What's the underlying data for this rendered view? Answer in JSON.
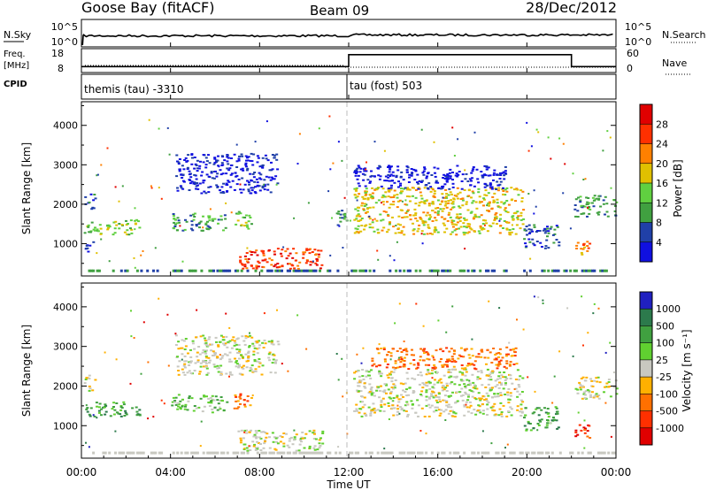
{
  "header": {
    "station": "Goose Bay (fitACF)",
    "beam": "Beam 09",
    "date": "28/Dec/2012"
  },
  "noise_panel": {
    "left_label": "N.Sky",
    "left_ticks": [
      "10^5",
      "10^0"
    ],
    "right_label": "N.Search",
    "right_ticks": [
      "10^5",
      "10^0"
    ]
  },
  "freq_panel": {
    "left_label_1": "Freq.",
    "left_label_2": "[MHz]",
    "left_ticks": [
      "18",
      "8"
    ],
    "right_label": "Nave",
    "right_ticks": [
      "60",
      "0"
    ]
  },
  "cpid_panel": {
    "label": "CPID",
    "modes": [
      {
        "name": "themis (tau)",
        "id": "-3310"
      },
      {
        "name": "tau (fost)",
        "id": "503"
      }
    ]
  },
  "power_panel": {
    "ylabel": "Slant Range [km]",
    "yticks": [
      "1000",
      "2000",
      "3000",
      "4000"
    ],
    "colorbar_label": "Power [dB]",
    "colorbar_ticks": [
      "4",
      "8",
      "12",
      "16",
      "20",
      "24",
      "28"
    ],
    "colors": [
      "#1010e0",
      "#2040a8",
      "#40a040",
      "#60d040",
      "#e0c000",
      "#ff8000",
      "#ff3000",
      "#e00000"
    ]
  },
  "velocity_panel": {
    "ylabel": "Slant Range [km]",
    "yticks": [
      "1000",
      "2000",
      "3000",
      "4000"
    ],
    "colorbar_label": "Velocity [m s⁻¹]",
    "colorbar_ticks": [
      "1000",
      "500",
      "100",
      "25",
      "-25",
      "-100",
      "-500",
      "-1000"
    ],
    "colors": [
      "#2020c0",
      "#2c7a4c",
      "#40a040",
      "#60d030",
      "#c8c8c0",
      "#ffb000",
      "#ff7000",
      "#ff3000",
      "#e00000"
    ]
  },
  "xaxis": {
    "label": "Time UT",
    "ticks": [
      "00:00",
      "04:00",
      "08:00",
      "12:00",
      "16:00",
      "20:00",
      "00:00"
    ]
  },
  "chart_data": {
    "type": "heatmap",
    "title": "Goose Bay (fitACF)  Beam 09  28/Dec/2012",
    "x_label": "Time UT",
    "x_range_hours": [
      0,
      24
    ],
    "y_label": "Slant Range [km]",
    "y_range_km": [
      180,
      4600
    ],
    "noise": {
      "n_sky_range": [
        "10^0",
        "10^5"
      ],
      "n_search_range": [
        "10^0",
        "10^5"
      ]
    },
    "frequency_mhz": [
      {
        "start_h": 0.0,
        "end_h": 12.0,
        "value": 10.5
      },
      {
        "start_h": 12.0,
        "end_h": 22.0,
        "value": 15.5
      },
      {
        "start_h": 22.0,
        "end_h": 24.0,
        "value": 10.5
      }
    ],
    "cpid": [
      {
        "start_h": 0.0,
        "end_h": 12.0,
        "mode": "themis (tau)",
        "id": -3310
      },
      {
        "start_h": 12.0,
        "end_h": 24.0,
        "mode": "tau (fost)",
        "id": 503
      }
    ],
    "power_colorbar_db": [
      4,
      8,
      12,
      16,
      20,
      24,
      28
    ],
    "velocity_colorbar_ms": [
      1000,
      500,
      100,
      25,
      -25,
      -100,
      -500,
      -1000
    ],
    "power_patches": [
      {
        "t0": 0.1,
        "t1": 2.6,
        "r0": 1250,
        "r1": 1620,
        "level": 3
      },
      {
        "t0": 0.1,
        "t1": 0.6,
        "r0": 1900,
        "r1": 2300,
        "level": 1
      },
      {
        "t0": 0.1,
        "t1": 0.5,
        "r0": 750,
        "r1": 1100,
        "level": 1
      },
      {
        "t0": 4.0,
        "t1": 6.5,
        "r0": 1350,
        "r1": 1800,
        "level": 2
      },
      {
        "t0": 6.8,
        "t1": 7.6,
        "r0": 1400,
        "r1": 1850,
        "level": 3
      },
      {
        "t0": 4.2,
        "t1": 8.8,
        "r0": 2300,
        "r1": 3300,
        "level": 0
      },
      {
        "t0": 7.0,
        "t1": 10.8,
        "r0": 380,
        "r1": 900,
        "level": 6
      },
      {
        "t0": 11.4,
        "t1": 12.0,
        "r0": 1450,
        "r1": 1900,
        "level": 2
      },
      {
        "t0": 12.2,
        "t1": 19.8,
        "r0": 1250,
        "r1": 2450,
        "level": 4
      },
      {
        "t0": 12.2,
        "t1": 19.0,
        "r0": 2400,
        "r1": 3000,
        "level": 0
      },
      {
        "t0": 19.8,
        "t1": 21.4,
        "r0": 900,
        "r1": 1500,
        "level": 1
      },
      {
        "t0": 22.1,
        "t1": 24.0,
        "r0": 1700,
        "r1": 2250,
        "level": 2
      },
      {
        "t0": 22.1,
        "t1": 22.8,
        "r0": 700,
        "r1": 1100,
        "level": 5
      }
    ],
    "velocity_patches": [
      {
        "t0": 0.1,
        "t1": 2.6,
        "r0": 1250,
        "r1": 1620,
        "level": 2
      },
      {
        "t0": 0.1,
        "t1": 0.6,
        "r0": 1900,
        "r1": 2300,
        "level": 4
      },
      {
        "t0": 4.0,
        "t1": 6.5,
        "r0": 1350,
        "r1": 1800,
        "level": 3
      },
      {
        "t0": 6.8,
        "t1": 7.6,
        "r0": 1400,
        "r1": 1850,
        "level": 6
      },
      {
        "t0": 4.2,
        "t1": 8.8,
        "r0": 2300,
        "r1": 3300,
        "level": 4
      },
      {
        "t0": 7.0,
        "t1": 10.8,
        "r0": 380,
        "r1": 900,
        "level": 4
      },
      {
        "t0": 12.2,
        "t1": 19.8,
        "r0": 1250,
        "r1": 2450,
        "level": 4
      },
      {
        "t0": 13.0,
        "t1": 19.5,
        "r0": 2450,
        "r1": 3000,
        "level": 6
      },
      {
        "t0": 19.8,
        "t1": 21.4,
        "r0": 900,
        "r1": 1500,
        "level": 2
      },
      {
        "t0": 22.1,
        "t1": 24.0,
        "r0": 1700,
        "r1": 2250,
        "level": 4
      },
      {
        "t0": 22.1,
        "t1": 22.8,
        "r0": 700,
        "r1": 1100,
        "level": 7
      }
    ]
  }
}
